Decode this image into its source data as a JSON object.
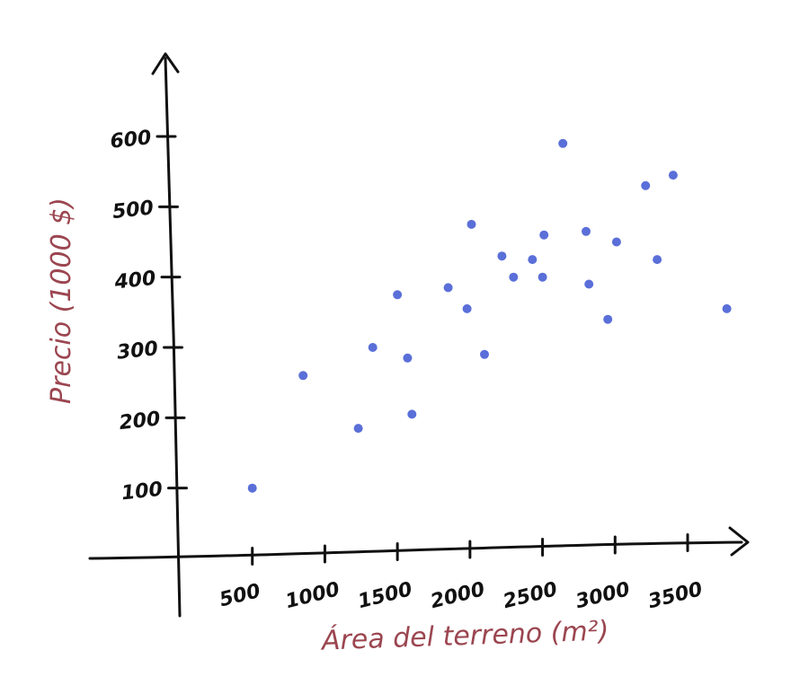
{
  "chart_data": {
    "type": "scatter",
    "xlabel": "Área del terreno (m²)",
    "ylabel": "Precio (1000 $)",
    "x_ticks": [
      {
        "value": 500,
        "label": "500"
      },
      {
        "value": 1000,
        "label": "1000"
      },
      {
        "value": 1500,
        "label": "1500"
      },
      {
        "value": 2000,
        "label": "2000"
      },
      {
        "value": 2500,
        "label": "2500"
      },
      {
        "value": 3000,
        "label": "3000"
      },
      {
        "value": 3500,
        "label": "3500"
      }
    ],
    "y_ticks": [
      {
        "value": 100,
        "label": "100"
      },
      {
        "value": 200,
        "label": "200"
      },
      {
        "value": 300,
        "label": "300"
      },
      {
        "value": 400,
        "label": "400"
      },
      {
        "value": 500,
        "label": "500"
      },
      {
        "value": 600,
        "label": "600"
      }
    ],
    "xlim": [
      0,
      3900
    ],
    "ylim": [
      0,
      720
    ],
    "grid": false,
    "series": [
      {
        "points": [
          {
            "x": 500,
            "y": 100
          },
          {
            "x": 850,
            "y": 260
          },
          {
            "x": 1230,
            "y": 185
          },
          {
            "x": 1330,
            "y": 300
          },
          {
            "x": 1500,
            "y": 375
          },
          {
            "x": 1570,
            "y": 285
          },
          {
            "x": 1600,
            "y": 205
          },
          {
            "x": 1850,
            "y": 385
          },
          {
            "x": 1980,
            "y": 355
          },
          {
            "x": 2010,
            "y": 475
          },
          {
            "x": 2100,
            "y": 290
          },
          {
            "x": 2220,
            "y": 430
          },
          {
            "x": 2300,
            "y": 400
          },
          {
            "x": 2430,
            "y": 425
          },
          {
            "x": 2500,
            "y": 400
          },
          {
            "x": 2510,
            "y": 460
          },
          {
            "x": 2640,
            "y": 590
          },
          {
            "x": 2800,
            "y": 465
          },
          {
            "x": 2820,
            "y": 390
          },
          {
            "x": 2950,
            "y": 340
          },
          {
            "x": 3010,
            "y": 450
          },
          {
            "x": 3210,
            "y": 530
          },
          {
            "x": 3290,
            "y": 425
          },
          {
            "x": 3400,
            "y": 545
          },
          {
            "x": 3770,
            "y": 355
          }
        ]
      }
    ]
  },
  "colors": {
    "point": "#5a6fd8",
    "axis": "#111111",
    "tick_label": "#111111",
    "axis_title": "#9b4650"
  }
}
